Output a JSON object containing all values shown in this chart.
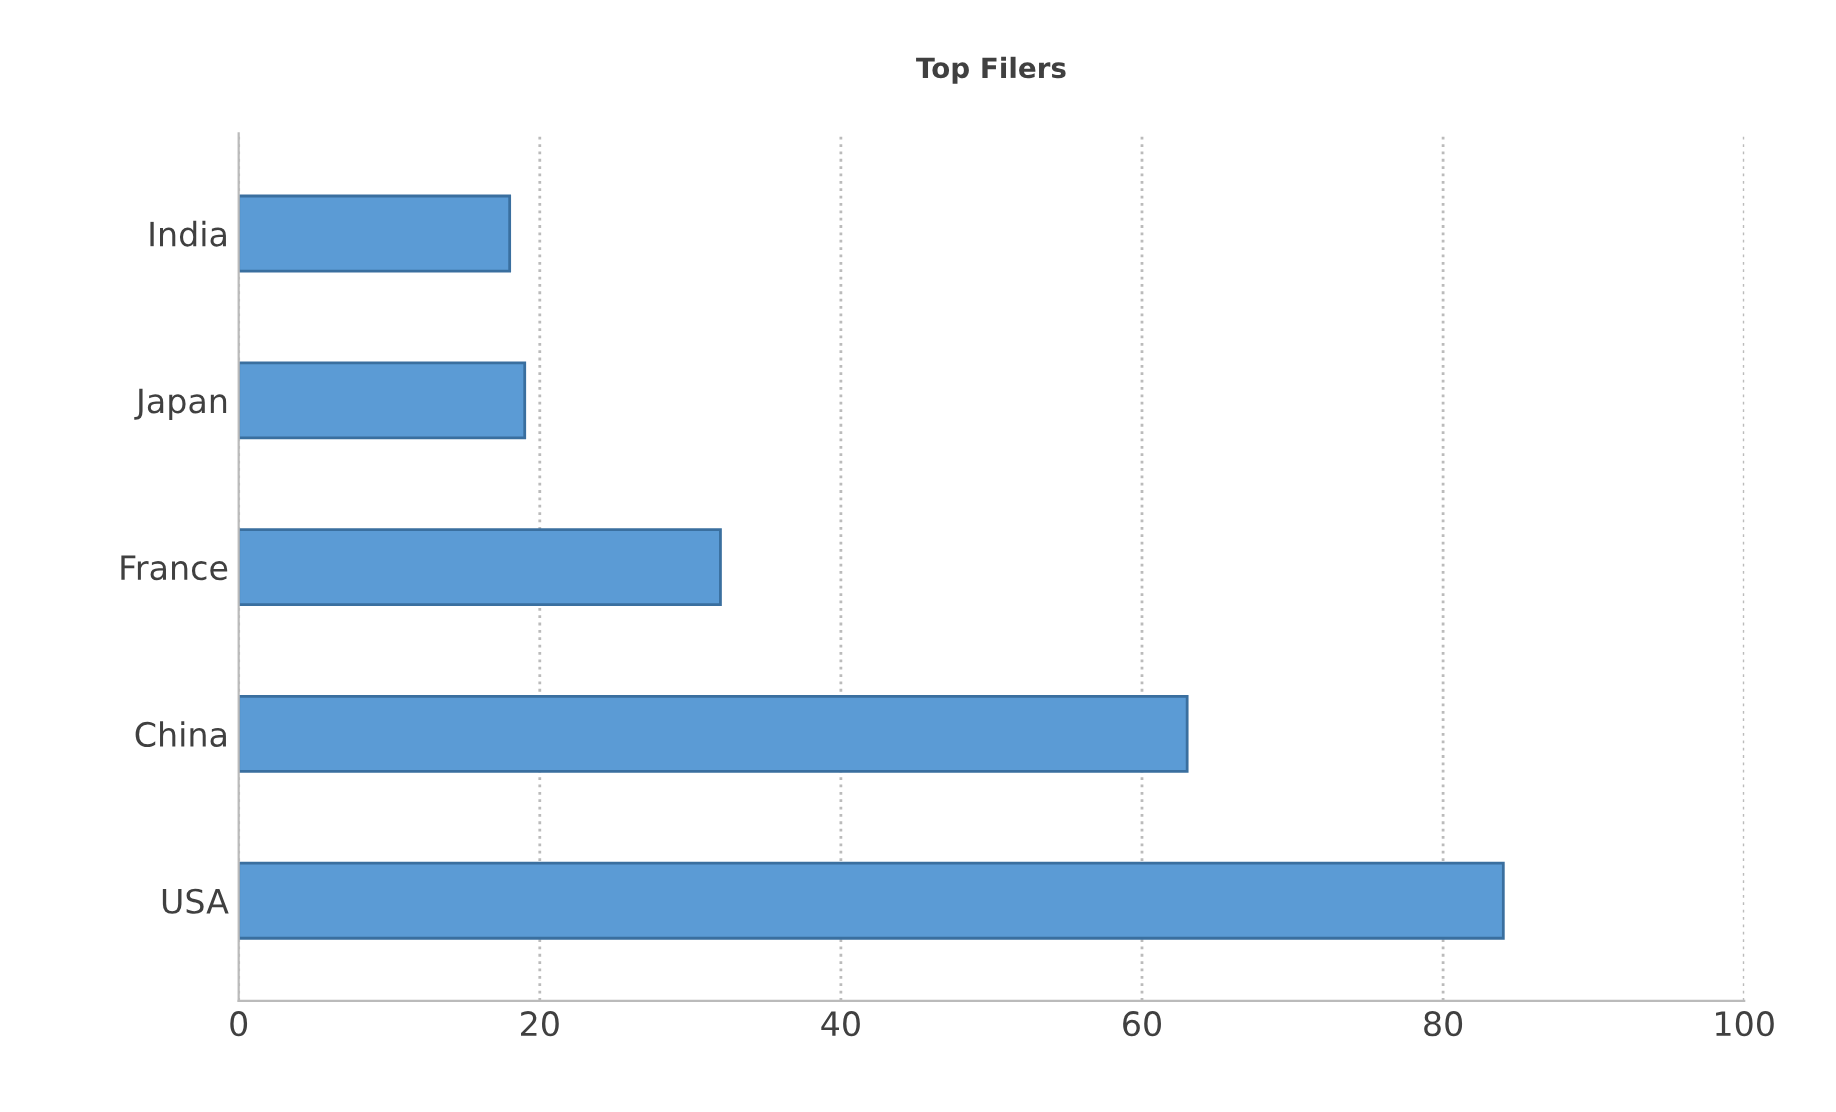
{
  "chart_data": {
    "type": "bar",
    "orientation": "horizontal",
    "title": "Top Filers",
    "categories": [
      "India",
      "Japan",
      "France",
      "China",
      "USA"
    ],
    "values": [
      18,
      19,
      32,
      63,
      84
    ],
    "color": "#5b9bd5",
    "xlim": [
      0,
      100
    ],
    "xticks": [
      0,
      20,
      40,
      60,
      80,
      100
    ],
    "grid": "x"
  }
}
